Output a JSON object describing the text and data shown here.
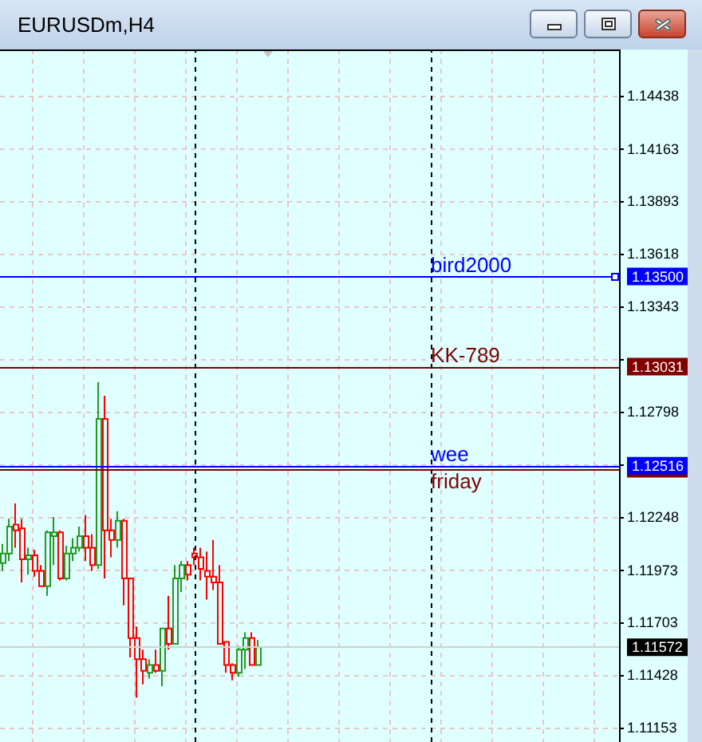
{
  "chart_data": {
    "type": "candlestick",
    "title": "EURUSDm,H4",
    "categories": [
      null,
      null,
      null,
      null,
      null,
      null,
      null,
      null,
      null,
      null,
      null,
      null,
      null,
      null,
      null,
      null,
      null,
      null,
      null,
      null,
      null,
      null,
      null,
      null,
      null,
      null,
      null,
      null,
      null,
      null,
      null,
      null,
      null,
      null,
      null,
      null,
      null,
      null,
      null,
      null,
      null,
      null,
      null,
      null,
      null,
      null,
      null,
      null,
      null,
      null,
      null,
      null,
      null,
      null,
      null,
      null,
      null,
      null,
      null,
      null,
      null,
      null,
      null,
      null,
      null,
      null,
      null,
      null,
      null,
      null,
      null,
      null,
      null,
      null,
      null,
      null,
      null,
      null,
      null,
      null,
      null,
      null,
      null,
      null,
      null,
      null,
      null,
      null,
      null,
      null,
      null,
      null,
      null,
      null,
      null,
      null,
      null
    ],
    "ohlc": [
      [
        1.1201,
        1.1211,
        1.1197,
        1.1206
      ],
      [
        1.1206,
        1.1224,
        1.1202,
        1.122
      ],
      [
        1.1221,
        1.1232,
        1.1209,
        1.1218
      ],
      [
        1.1219,
        1.1224,
        1.1191,
        1.1203
      ],
      [
        1.1203,
        1.1209,
        1.1195,
        1.1205
      ],
      [
        1.1205,
        1.1208,
        1.1194,
        1.1197
      ],
      [
        1.1197,
        1.12,
        1.1189,
        1.1189
      ],
      [
        1.1189,
        1.1218,
        1.1184,
        1.1217
      ],
      [
        1.1215,
        1.1225,
        1.12,
        1.1217
      ],
      [
        1.1217,
        1.1218,
        1.1192,
        1.1193
      ],
      [
        1.1193,
        1.121,
        1.1192,
        1.1206
      ],
      [
        1.1206,
        1.1214,
        1.1202,
        1.1209
      ],
      [
        1.1209,
        1.122,
        1.1207,
        1.1215
      ],
      [
        1.1215,
        1.1226,
        1.1202,
        1.1209
      ],
      [
        1.1209,
        1.1216,
        1.1197,
        1.12
      ],
      [
        1.12,
        1.1295,
        1.1198,
        1.1276
      ],
      [
        1.1276,
        1.1288,
        1.1193,
        1.1218
      ],
      [
        1.1218,
        1.1224,
        1.1204,
        1.1213
      ],
      [
        1.1213,
        1.1228,
        1.1209,
        1.1223
      ],
      [
        1.1223,
        1.1224,
        1.1179,
        1.1193
      ],
      [
        1.1193,
        1.1193,
        1.1152,
        1.1162
      ],
      [
        1.1162,
        1.1168,
        1.1131,
        1.1151
      ],
      [
        1.1151,
        1.1156,
        1.1138,
        1.1145
      ],
      [
        1.1144,
        1.1151,
        1.1141,
        1.1148
      ],
      [
        1.1148,
        1.1156,
        1.1144,
        1.1145
      ],
      [
        1.1145,
        1.1167,
        1.1137,
        1.1167
      ],
      [
        1.1167,
        1.1184,
        1.1156,
        1.1159
      ],
      [
        1.1159,
        1.12,
        1.1159,
        1.1193
      ],
      [
        1.1193,
        1.1202,
        1.1186,
        1.12
      ],
      [
        1.12,
        1.1202,
        1.1192,
        1.1195
      ],
      [
        1.1206,
        1.1209,
        1.12,
        1.1204
      ],
      [
        1.1204,
        1.1209,
        1.1192,
        1.1198
      ],
      [
        1.1197,
        1.1207,
        1.1182,
        1.1194
      ],
      [
        1.1194,
        1.1213,
        1.1187,
        1.1191
      ],
      [
        1.1191,
        1.12,
        1.1159,
        1.1159
      ],
      [
        1.116,
        1.116,
        1.1144,
        1.1148
      ],
      [
        1.1148,
        1.1149,
        1.114,
        1.1144
      ],
      [
        1.1144,
        1.1158,
        1.1142,
        1.1156
      ],
      [
        1.1156,
        1.1165,
        1.1146,
        1.1162
      ],
      [
        1.1162,
        1.1165,
        1.1148,
        1.1148
      ],
      [
        1.1148,
        1.1161,
        1.1148,
        1.11572
      ],
      null,
      null,
      null,
      null,
      null,
      null,
      null,
      null,
      null,
      null,
      null,
      null,
      null,
      null,
      null,
      null,
      null,
      null,
      null,
      null,
      null,
      null,
      null,
      null,
      null,
      null,
      null,
      null,
      null,
      null,
      null,
      null,
      null,
      null,
      null,
      null,
      null,
      null,
      null,
      null,
      null,
      null,
      null,
      null,
      null,
      null,
      null,
      null,
      null,
      null,
      null,
      null,
      null,
      null,
      null,
      null
    ],
    "colors": [
      "#229922",
      "#229922",
      "#ff0000",
      "#ff0000",
      "#229922",
      "#ff0000",
      "#ff0000",
      "#229922",
      "#229922",
      "#ff0000",
      "#229922",
      "#229922",
      "#229922",
      "#ff0000",
      "#ff0000",
      "#229922",
      "#ff0000",
      "#ff0000",
      "#229922",
      "#ff0000",
      "#ff0000",
      "#ff0000",
      "#ff0000",
      "#229922",
      "#ff0000",
      "#229922",
      "#ff0000",
      "#229922",
      "#229922",
      "#ff0000",
      "#ff0000",
      "#ff0000",
      "#ff0000",
      "#ff0000",
      "#ff0000",
      "#ff0000",
      "#ff0000",
      "#229922",
      "#229922",
      "#ff0000",
      "#229922",
      null,
      null,
      null,
      null,
      null,
      null,
      null,
      null,
      null,
      null,
      null,
      null,
      null,
      null,
      null,
      null,
      null,
      null,
      null,
      null,
      null,
      null,
      null,
      null,
      null,
      null,
      null,
      null,
      null,
      null,
      null,
      null,
      null,
      null,
      null,
      null,
      null,
      null,
      null,
      null,
      null,
      null,
      null,
      null,
      null,
      null,
      null,
      null,
      null,
      null,
      null,
      null,
      null,
      null,
      null,
      null
    ],
    "ylim": [
      1.1108,
      1.1468
    ],
    "yticks": [
      1.14438,
      1.14163,
      1.13893,
      1.13618,
      1.13343,
      {
        "value": 1.13068,
        "label": null
      },
      1.12798,
      {
        "value": 1.12523,
        "label": null
      },
      1.12248,
      1.11973,
      1.11703,
      1.11428,
      1.11153
    ],
    "grid": true,
    "tick_labels": "y",
    "ref_lines": [
      {
        "axis": "y",
        "value": 1.135,
        "label": "bird2000",
        "color": "#0000ff"
      },
      {
        "axis": "y",
        "value": 1.13031,
        "label": "KK-789",
        "color": "#800000"
      },
      {
        "axis": "y",
        "value": 1.12516,
        "label": "wee",
        "color": "#0000ff"
      },
      {
        "axis": "y",
        "value": 1.125,
        "label": "friday",
        "color": "#800000"
      },
      {
        "axis": "y",
        "value": 1.11572,
        "color": "#d0d0d0"
      }
    ],
    "annotations": [
      "1.13500",
      "1.13031",
      "1.12516",
      "1.11572"
    ]
  }
}
